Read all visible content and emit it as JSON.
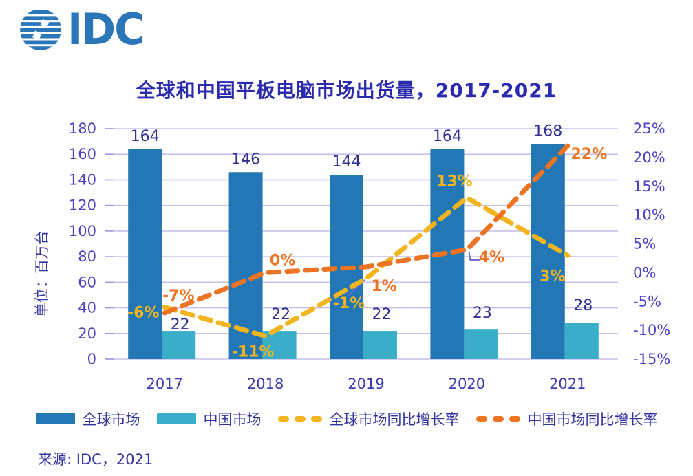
{
  "logo": {
    "text": "IDC"
  },
  "title": "全球和中国平板电脑市场出货量，2017-2021",
  "y_axis_title": "单位：百万台",
  "source": "来源: IDC，2021",
  "legend": [
    {
      "label": "全球市场",
      "type": "bar",
      "color": "#2277b4"
    },
    {
      "label": "中国市场",
      "type": "bar",
      "color": "#3aaec8"
    },
    {
      "label": "全球市场同比增长率",
      "type": "line",
      "color": "#f2b51d"
    },
    {
      "label": "中国市场同比增长率",
      "type": "line",
      "color": "#ec7423"
    }
  ],
  "chart_data": {
    "type": "bar",
    "subtype": "bar+line combo, dual axis",
    "title": "全球和中国平板电脑市场出货量，2017-2021",
    "categories": [
      "2017",
      "2018",
      "2019",
      "2020",
      "2021"
    ],
    "bar_series": [
      {
        "name": "全球市场",
        "color": "#2277b4",
        "axis": "left",
        "values": [
          164,
          146,
          144,
          164,
          168
        ],
        "labels": [
          "164",
          "146",
          "144",
          "164",
          "168"
        ]
      },
      {
        "name": "中国市场",
        "color": "#3aaec8",
        "axis": "left",
        "values": [
          22,
          22,
          22,
          23,
          28
        ],
        "labels": [
          "22",
          "22",
          "22",
          "23",
          "28"
        ]
      }
    ],
    "line_series": [
      {
        "name": "全球市场同比增长率",
        "color": "#f2b51d",
        "axis": "right",
        "values": [
          -6,
          -11,
          -1,
          13,
          3
        ],
        "labels": [
          "-6%",
          "-11%",
          "-1%",
          "13%",
          "3%"
        ]
      },
      {
        "name": "中国市场同比增长率",
        "color": "#ec7423",
        "axis": "right",
        "values": [
          -7,
          0,
          1,
          4,
          22
        ],
        "labels": [
          "-7%",
          "0%",
          "1%",
          "4%",
          "22%"
        ]
      }
    ],
    "left_axis": {
      "label": "单位：百万台",
      "min": 0,
      "max": 180,
      "step": 20,
      "ticks": [
        "0",
        "20",
        "40",
        "60",
        "80",
        "100",
        "120",
        "140",
        "160",
        "180"
      ]
    },
    "right_axis": {
      "min": -15,
      "max": 25,
      "step": 5,
      "ticks": [
        "-15%",
        "-10%",
        "-5%",
        "0%",
        "5%",
        "10%",
        "15%",
        "20%",
        "25%"
      ]
    },
    "grid": true,
    "legend_position": "bottom"
  },
  "colors": {
    "navy_text": "#3232a0",
    "title_text": "#2a2aae",
    "axis_tick_text": "#4a42c4",
    "bar_label_text": "#2f2f94",
    "gridline": "#c6c0ea",
    "axis_tick_mark": "#9d94dd",
    "leader_line": "#6f62d9",
    "logo_blue": "#2b76b9"
  }
}
